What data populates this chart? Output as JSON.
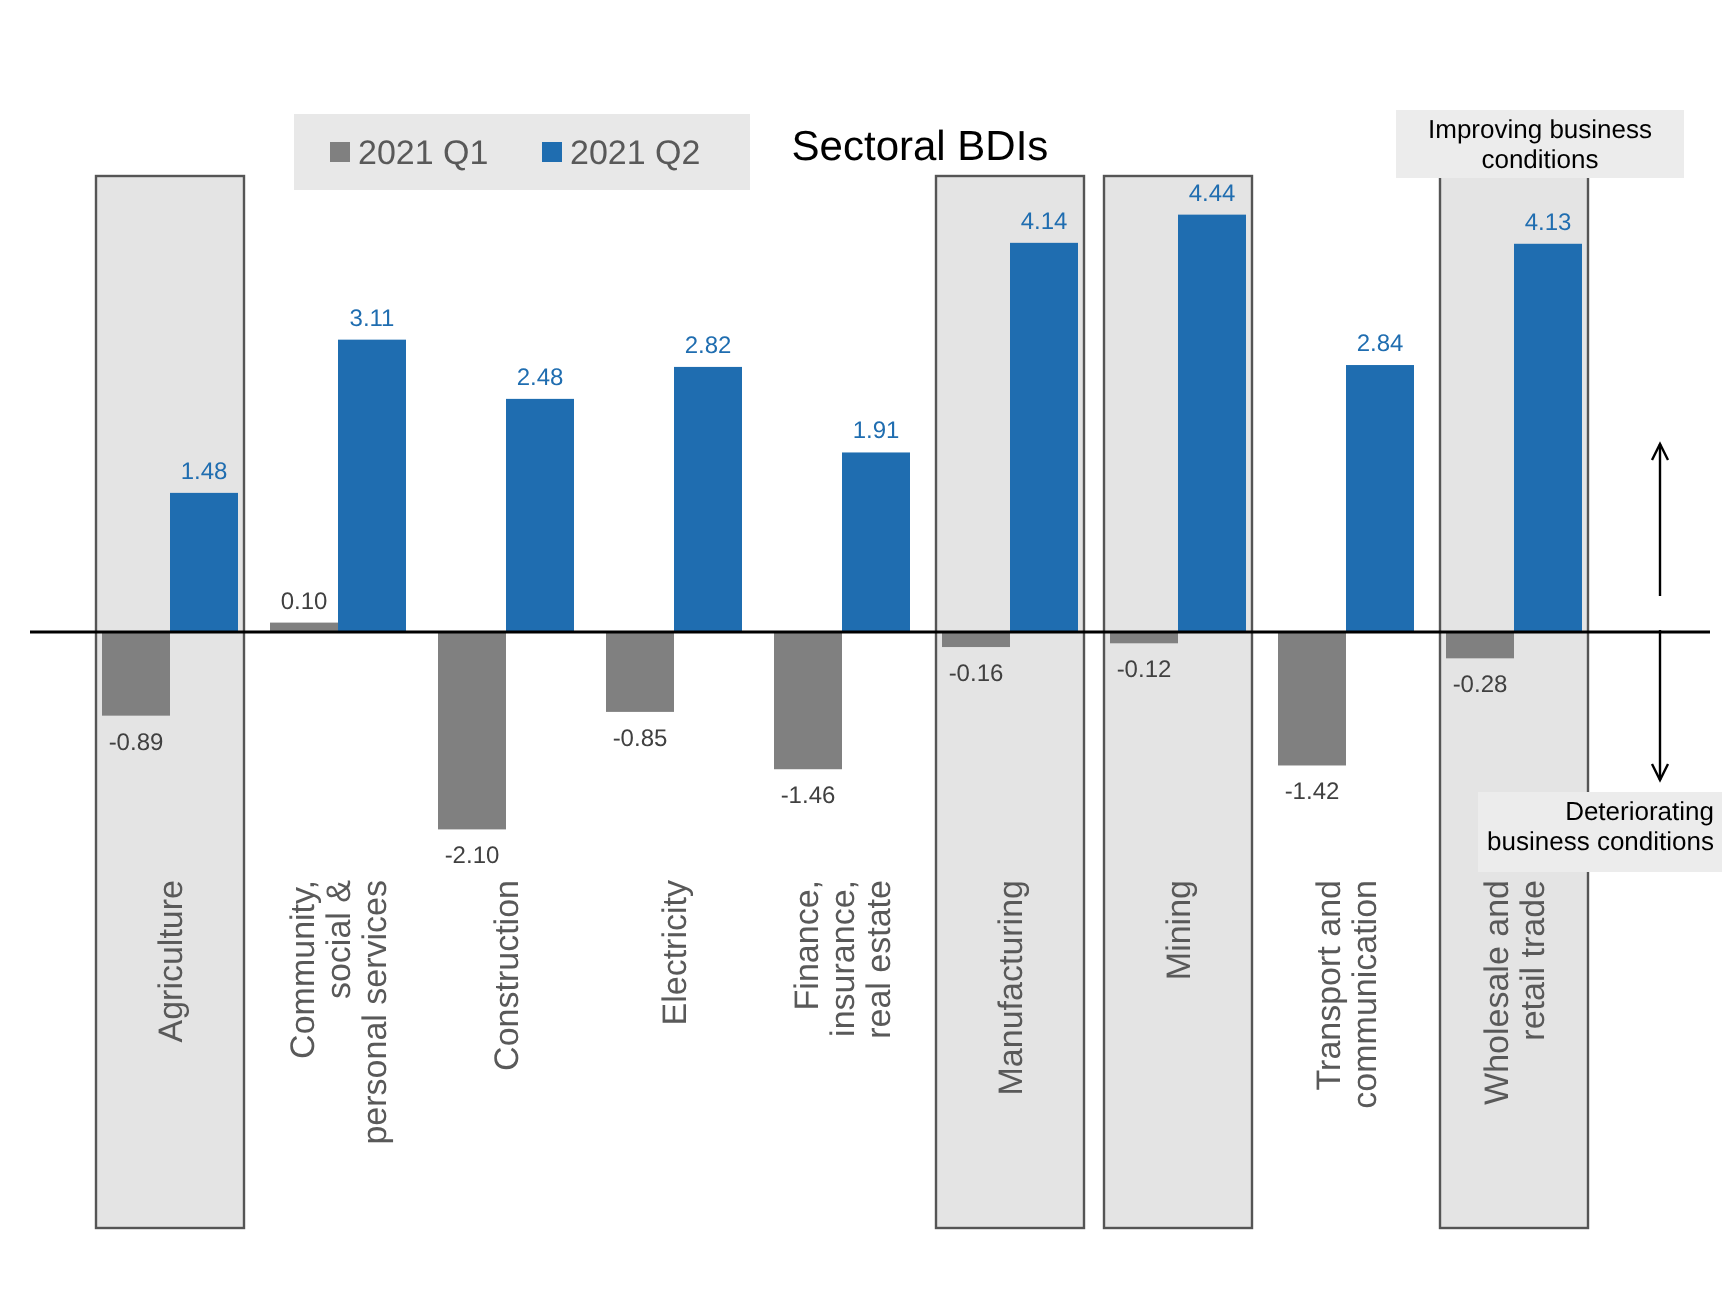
{
  "chart_data": {
    "type": "bar",
    "title": "Sectoral BDIs",
    "categories": [
      "Agriculture",
      "Community,\nsocial &\npersonal services",
      "Construction",
      "Electricity",
      "Finance,\ninsurance,\nreal estate",
      "Manufacturing",
      "Mining",
      "Transport and\ncommunication",
      "Wholesale and\nretail trade"
    ],
    "series": [
      {
        "name": "2021 Q1",
        "color": "#808080",
        "values": [
          -0.89,
          0.1,
          -2.1,
          -0.85,
          -1.46,
          -0.16,
          -0.12,
          -1.42,
          -0.28
        ],
        "value_labels": [
          "-0.89",
          "0.10",
          "-2.10",
          "-0.85",
          "-1.46",
          "-0.16",
          "-0.12",
          "-1.42",
          "-0.28"
        ]
      },
      {
        "name": "2021 Q2",
        "color": "#1f6db0",
        "values": [
          1.48,
          3.11,
          2.48,
          2.82,
          1.91,
          4.14,
          4.44,
          2.84,
          4.13
        ],
        "value_labels": [
          "1.48",
          "3.11",
          "2.48",
          "2.82",
          "1.91",
          "4.14",
          "4.44",
          "2.84",
          "4.13"
        ]
      }
    ],
    "legend": "top left",
    "bands": [
      {
        "axis": "x",
        "from": "Agriculture",
        "to": "Agriculture",
        "label": null,
        "color": "#e4e4e4"
      },
      {
        "axis": "x",
        "from": "Manufacturing",
        "to": "Manufacturing",
        "label": null,
        "color": "#e4e4e4"
      },
      {
        "axis": "x",
        "from": "Mining",
        "to": "Mining",
        "label": null,
        "color": "#e4e4e4"
      },
      {
        "axis": "x",
        "from": "Wholesale and\nretail trade",
        "to": "Wholesale and\nretail trade",
        "label": null,
        "color": "#e4e4e4"
      }
    ],
    "annotations": [
      "Improving business\nconditions",
      "Deteriorating\nbusiness conditions"
    ]
  }
}
